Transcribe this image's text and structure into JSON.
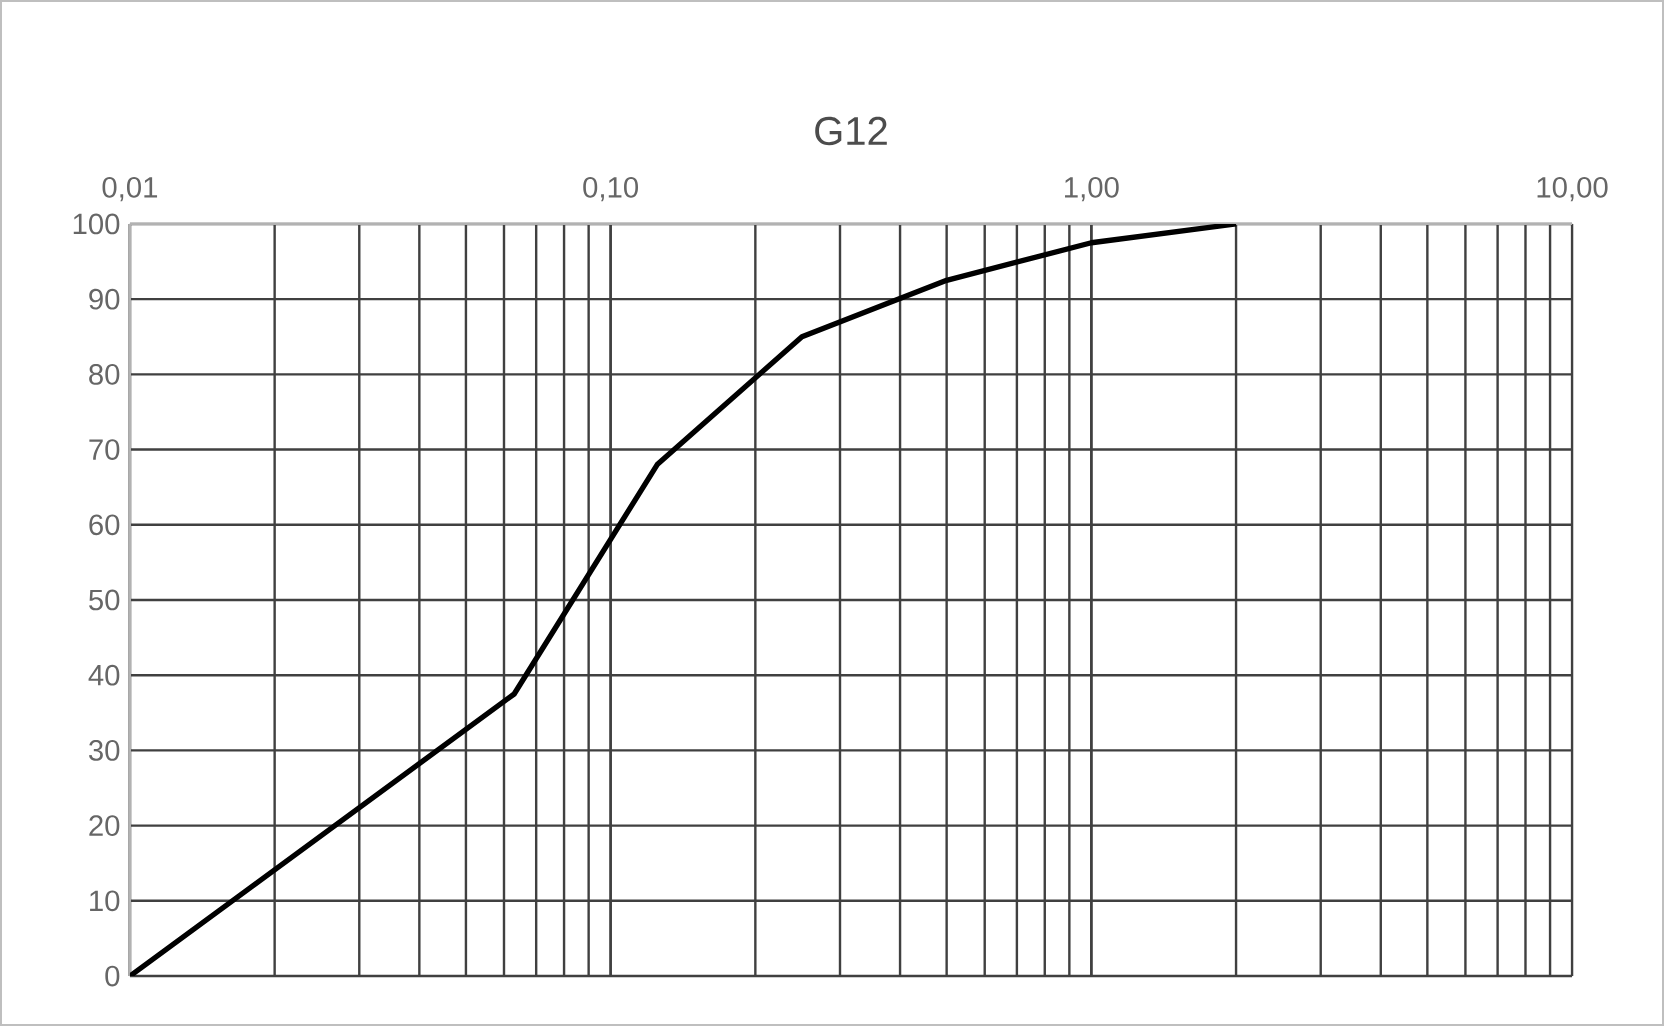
{
  "chart_data": {
    "type": "line",
    "title": "G12",
    "log": "x",
    "x": [
      0.01,
      0.063,
      0.125,
      0.25,
      0.5,
      1,
      2
    ],
    "series": [
      {
        "color": "#000000",
        "values": [
          0,
          37.5,
          68,
          85,
          92.5,
          97.5,
          100
        ]
      }
    ],
    "xlim": [
      0.01,
      10
    ],
    "xticks": [
      {
        "value": 0.01,
        "label": "0,01"
      },
      {
        "value": 0.1,
        "label": "0,10"
      },
      {
        "value": 1,
        "label": "1,00"
      },
      {
        "value": 10,
        "label": "10,00"
      }
    ],
    "ylim": [
      0,
      100
    ],
    "yticks": [
      0,
      10,
      20,
      30,
      40,
      50,
      60,
      70,
      80,
      90,
      100
    ],
    "grid": true,
    "legend": false,
    "marker": "none",
    "line_style": "solid"
  }
}
